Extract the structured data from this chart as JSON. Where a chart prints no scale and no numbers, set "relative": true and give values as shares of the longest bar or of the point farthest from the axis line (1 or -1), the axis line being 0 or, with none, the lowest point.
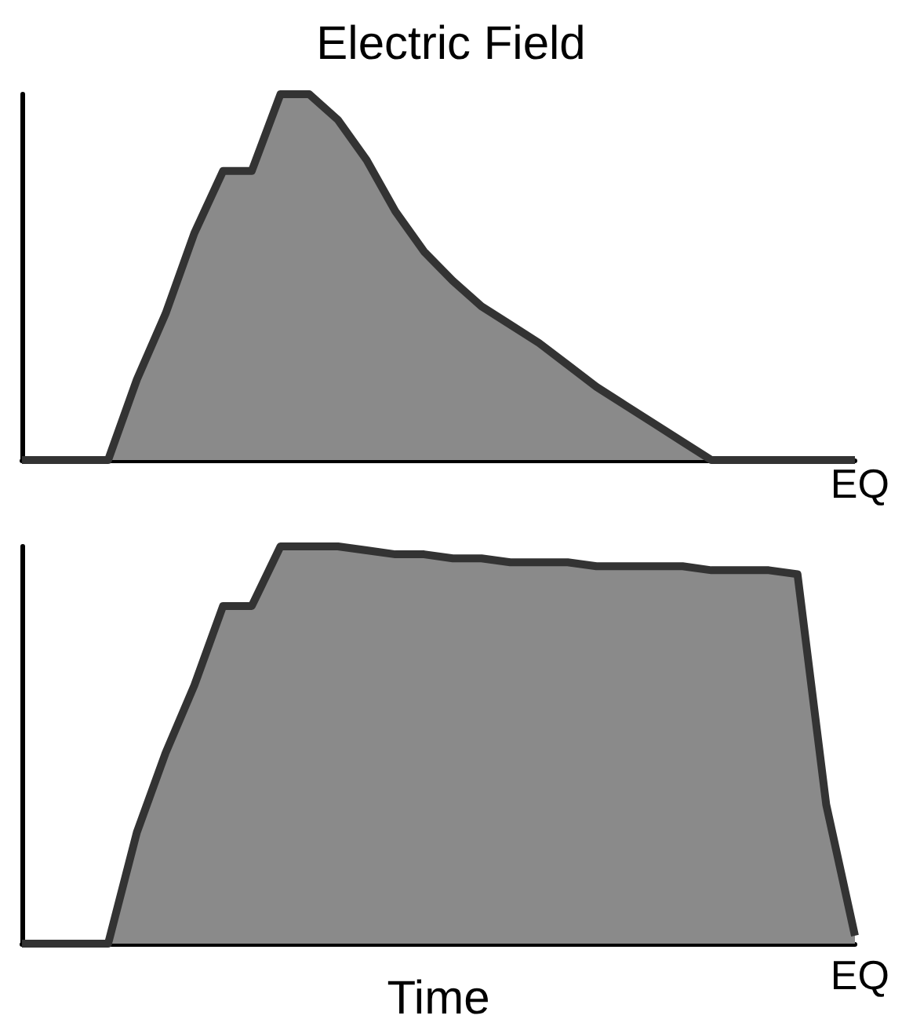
{
  "chart_data": [
    {
      "type": "area",
      "title": "Electric Field",
      "relative": true,
      "categories": [
        null,
        null,
        null,
        null,
        null,
        null,
        null,
        null,
        null,
        null,
        null,
        null,
        null,
        null,
        null,
        null,
        null,
        null,
        null,
        null,
        null,
        null,
        null,
        null,
        null,
        null,
        null,
        null,
        null,
        null
      ],
      "series": [
        {
          "color": "#8a8a8a",
          "values": [
            0,
            0,
            0,
            0,
            0.22,
            0.4,
            0.62,
            0.79,
            0.79,
            1,
            1,
            0.93,
            0.82,
            0.68,
            0.57,
            0.49,
            0.42,
            0.37,
            0.32,
            0.26,
            0.2,
            0.15,
            0.1,
            0.05,
            0,
            0,
            0,
            0,
            0,
            0
          ]
        }
      ],
      "annotations": [
        "EQ"
      ]
    },
    {
      "type": "area",
      "xlabel": "Time",
      "relative": true,
      "categories": [
        null,
        null,
        null,
        null,
        null,
        null,
        null,
        null,
        null,
        null,
        null,
        null,
        null,
        null,
        null,
        null,
        null,
        null,
        null,
        null,
        null,
        null,
        null,
        null,
        null,
        null,
        null,
        null,
        null,
        null
      ],
      "series": [
        {
          "color": "#8a8a8a",
          "values": [
            0,
            0,
            0,
            0,
            0.28,
            0.48,
            0.65,
            0.85,
            0.85,
            1,
            1,
            1,
            0.99,
            0.98,
            0.98,
            0.97,
            0.97,
            0.96,
            0.96,
            0.96,
            0.95,
            0.95,
            0.95,
            0.95,
            0.94,
            0.94,
            0.94,
            0.93,
            0.35,
            0.02
          ]
        }
      ],
      "annotations": [
        "EQ"
      ]
    }
  ]
}
